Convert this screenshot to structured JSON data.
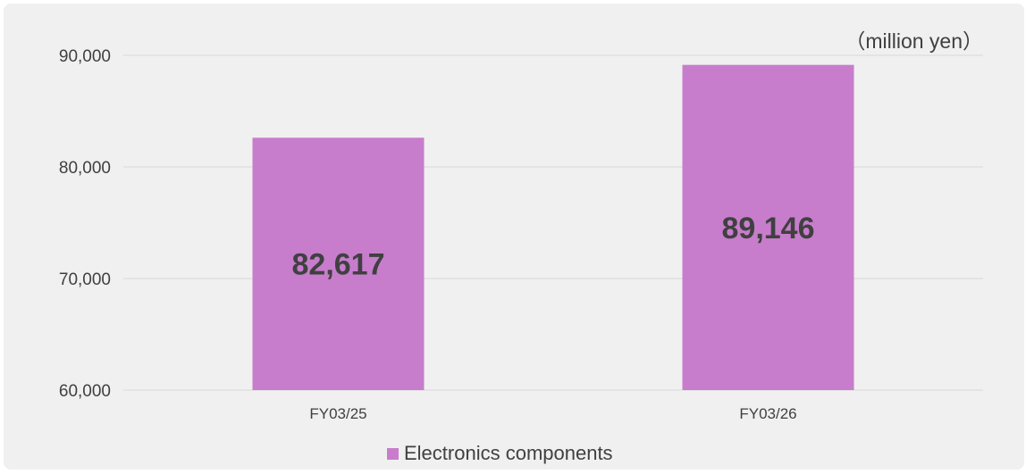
{
  "chart_data": {
    "type": "bar",
    "unit_label": "（million yen）",
    "categories": [
      "FY03/25",
      "FY03/26"
    ],
    "series": [
      {
        "name": "Electronics components",
        "values": [
          82617,
          89146
        ],
        "labels": [
          "82,617",
          "89,146"
        ],
        "color": "#c77dcc"
      }
    ],
    "ylim": [
      60000,
      90000
    ],
    "yticks": [
      60000,
      70000,
      80000,
      90000
    ],
    "ytick_labels": [
      "60,000",
      "70,000",
      "80,000",
      "90,000"
    ],
    "grid": true,
    "legend_position": "bottom"
  },
  "colors": {
    "panel_background": "#f0f0f0",
    "gridline": "#d9d9d9",
    "axis_text": "#404040",
    "data_label": "#404040"
  }
}
